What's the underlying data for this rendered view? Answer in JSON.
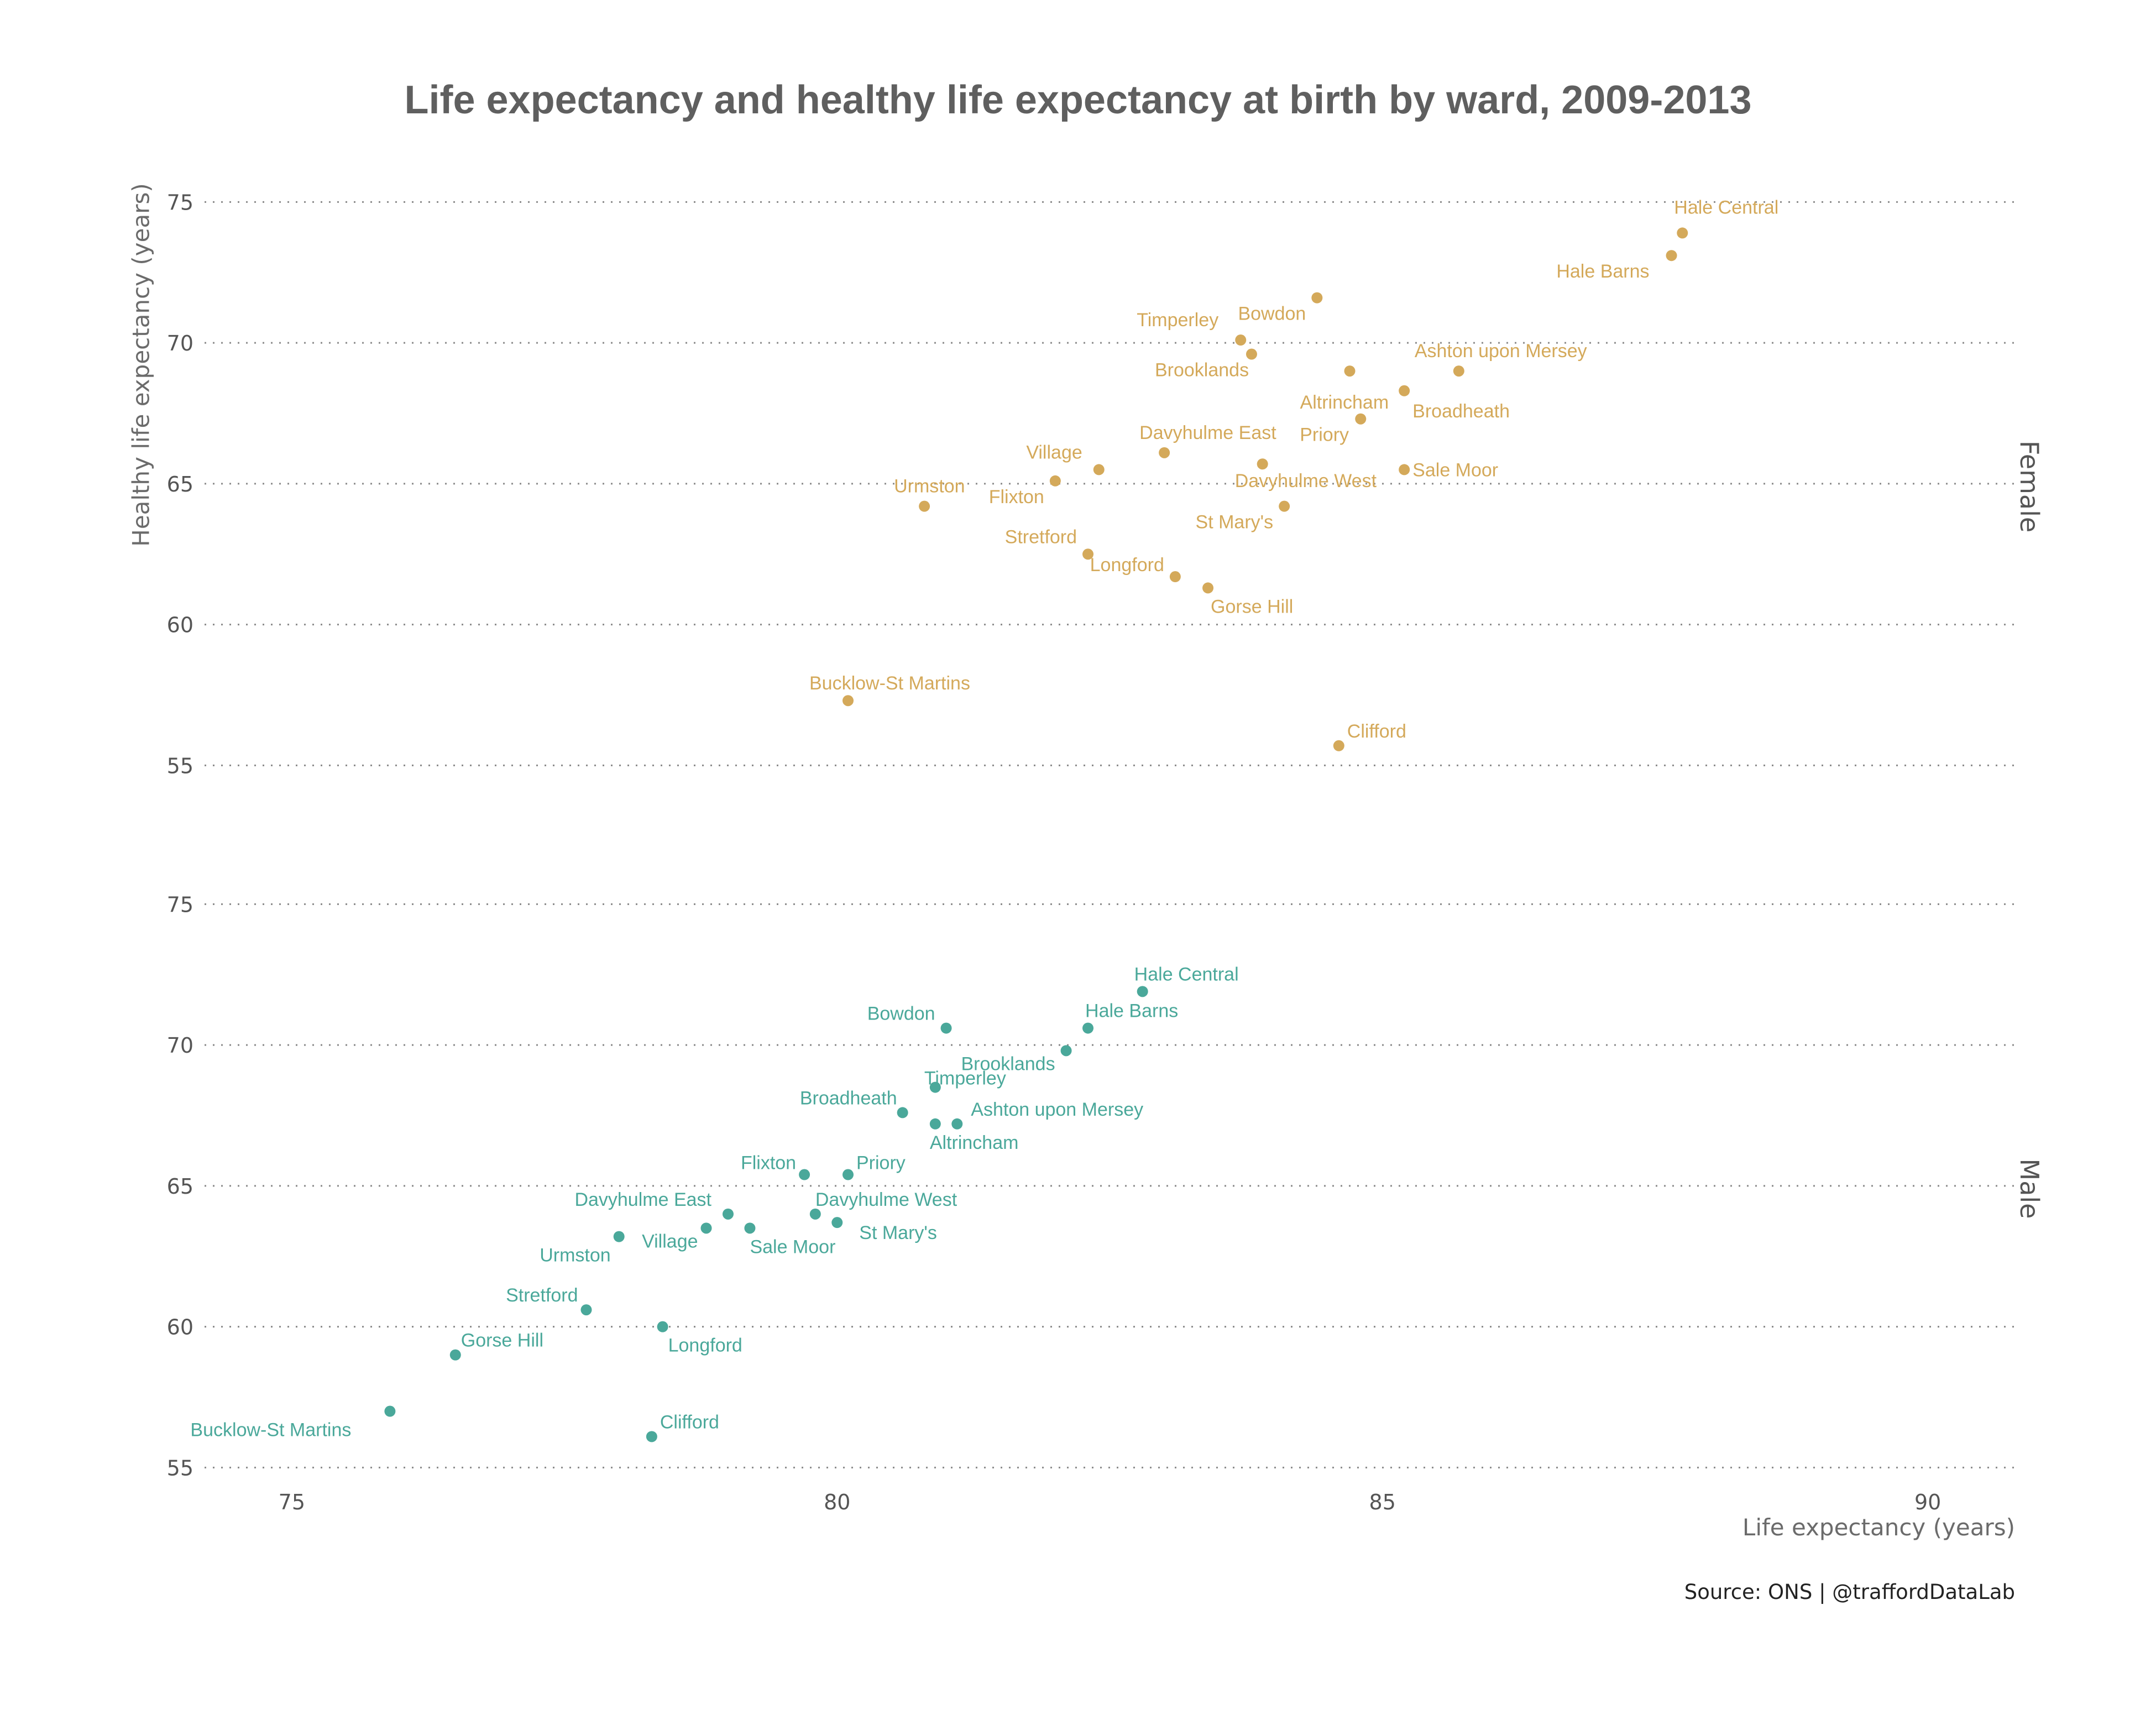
{
  "chart_data": {
    "type": "scatter",
    "title": "Life expectancy and healthy life expectancy at birth by ward, 2009-2013",
    "xlabel": "Life expectancy (years)",
    "ylabel": "Healthy life expectancy (years)",
    "caption": "Source: ONS  |  @traffordDataLab",
    "xlim": [
      74.2,
      90.8
    ],
    "x_ticks": [
      75,
      80,
      85,
      90
    ],
    "y_ticks": [
      55,
      60,
      65,
      70,
      75
    ],
    "grid": "horizontal dotted",
    "colors": {
      "Female": "#d4a95a",
      "Male": "#4aa89a"
    },
    "panels": [
      {
        "name": "Female",
        "ylim": [
          54.4,
          75.4
        ],
        "points": [
          {
            "label": "Hale Central",
            "x": 87.75,
            "y": 73.9
          },
          {
            "label": "Hale Barns",
            "x": 87.65,
            "y": 73.1
          },
          {
            "label": "Bowdon",
            "x": 84.4,
            "y": 71.6
          },
          {
            "label": "Timperley",
            "x": 83.7,
            "y": 70.1
          },
          {
            "label": "Brooklands",
            "x": 83.8,
            "y": 69.6
          },
          {
            "label": "Altrincham",
            "x": 84.7,
            "y": 69.0
          },
          {
            "label": "Ashton upon Mersey",
            "x": 85.7,
            "y": 69.0
          },
          {
            "label": "Broadheath",
            "x": 85.2,
            "y": 68.3
          },
          {
            "label": "Priory",
            "x": 84.8,
            "y": 67.3
          },
          {
            "label": "Davyhulme East",
            "x": 83.0,
            "y": 66.1
          },
          {
            "label": "Village",
            "x": 82.4,
            "y": 65.5
          },
          {
            "label": "Davyhulme West",
            "x": 83.9,
            "y": 65.7
          },
          {
            "label": "Sale Moor",
            "x": 85.2,
            "y": 65.5
          },
          {
            "label": "Flixton",
            "x": 82.0,
            "y": 65.1
          },
          {
            "label": "Urmston",
            "x": 80.8,
            "y": 64.2
          },
          {
            "label": "St Mary's",
            "x": 84.1,
            "y": 64.2
          },
          {
            "label": "Stretford",
            "x": 82.3,
            "y": 62.5
          },
          {
            "label": "Longford",
            "x": 83.1,
            "y": 61.7
          },
          {
            "label": "Gorse Hill",
            "x": 83.4,
            "y": 61.3
          },
          {
            "label": "Bucklow-St Martins",
            "x": 80.1,
            "y": 57.3
          },
          {
            "label": "Clifford",
            "x": 84.6,
            "y": 55.7
          }
        ]
      },
      {
        "name": "Male",
        "ylim": [
          54.4,
          75.4
        ],
        "points": [
          {
            "label": "Hale Central",
            "x": 82.8,
            "y": 71.9
          },
          {
            "label": "Bowdon",
            "x": 81.0,
            "y": 70.6
          },
          {
            "label": "Hale Barns",
            "x": 82.3,
            "y": 70.6
          },
          {
            "label": "Brooklands",
            "x": 82.1,
            "y": 69.8
          },
          {
            "label": "Timperley",
            "x": 80.9,
            "y": 68.5
          },
          {
            "label": "Broadheath",
            "x": 80.6,
            "y": 67.6
          },
          {
            "label": "Ashton upon Mersey",
            "x": 81.1,
            "y": 67.2
          },
          {
            "label": "Altrincham",
            "x": 80.9,
            "y": 67.2
          },
          {
            "label": "Flixton",
            "x": 79.7,
            "y": 65.4
          },
          {
            "label": "Priory",
            "x": 80.1,
            "y": 65.4
          },
          {
            "label": "Davyhulme East",
            "x": 79.0,
            "y": 64.0
          },
          {
            "label": "Davyhulme West",
            "x": 79.8,
            "y": 64.0
          },
          {
            "label": "St Mary's",
            "x": 80.0,
            "y": 63.7
          },
          {
            "label": "Village",
            "x": 78.8,
            "y": 63.5
          },
          {
            "label": "Sale Moor",
            "x": 79.2,
            "y": 63.5
          },
          {
            "label": "Urmston",
            "x": 78.0,
            "y": 63.2
          },
          {
            "label": "Stretford",
            "x": 77.7,
            "y": 60.6
          },
          {
            "label": "Longford",
            "x": 78.4,
            "y": 60.0
          },
          {
            "label": "Gorse Hill",
            "x": 76.5,
            "y": 59.0
          },
          {
            "label": "Bucklow-St Martins",
            "x": 75.9,
            "y": 57.0
          },
          {
            "label": "Clifford",
            "x": 78.3,
            "y": 56.1
          }
        ]
      }
    ]
  }
}
